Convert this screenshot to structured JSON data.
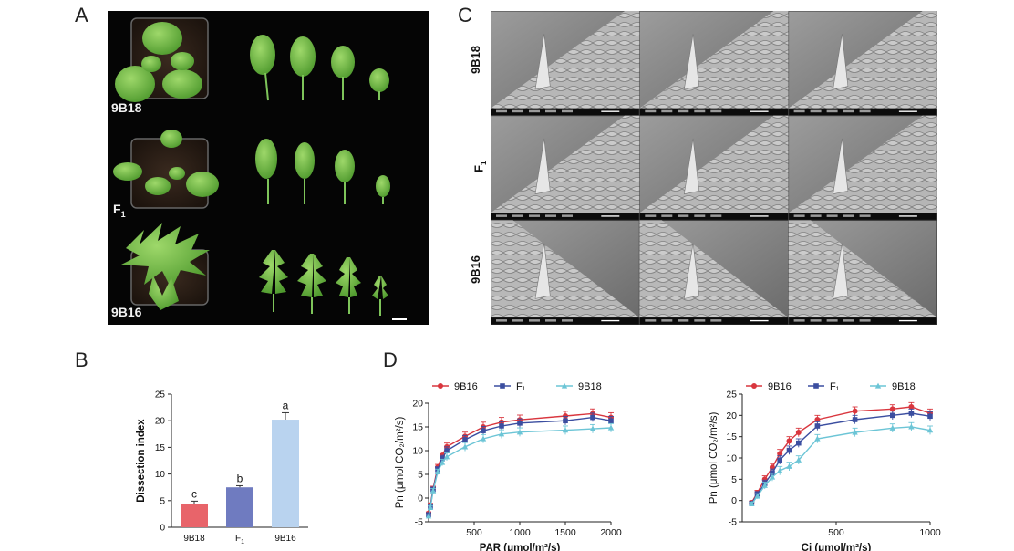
{
  "panels": {
    "a": "A",
    "b": "B",
    "c": "C",
    "d": "D"
  },
  "panelA": {
    "rows": [
      {
        "label": "9B18"
      },
      {
        "label_main": "F",
        "label_sub": "1"
      },
      {
        "label": "9B16"
      }
    ]
  },
  "panelC": {
    "rows": [
      {
        "label": "9B18"
      },
      {
        "label_main": "F",
        "label_sub": "1"
      },
      {
        "label": "9B16"
      }
    ]
  },
  "chart_data": [
    {
      "type": "bar",
      "ylabel": "Dissection index",
      "categories": [
        "9B18",
        "F1",
        "9B16"
      ],
      "category_labels": [
        {
          "main": "9B18"
        },
        {
          "main": "F",
          "sub": "1"
        },
        {
          "main": "9B16"
        }
      ],
      "values": [
        4.3,
        7.5,
        20.2
      ],
      "errors": [
        0.6,
        0.3,
        1.3
      ],
      "significance": [
        "c",
        "b",
        "a"
      ],
      "colors": [
        "#e8646a",
        "#6f7bc0",
        "#b9d3ef"
      ],
      "ylim": [
        0,
        25
      ],
      "yticks": [
        0,
        5,
        10,
        15,
        20,
        25
      ]
    },
    {
      "type": "line",
      "xlabel": "PAR (μmol/m²/s)",
      "ylabel": "Pn (μmol CO₂/m²/s)",
      "xlim": [
        0,
        2000
      ],
      "ylim": [
        -5,
        20
      ],
      "xticks": [
        500,
        1000,
        1500,
        2000
      ],
      "yticks": [
        -5,
        0,
        5,
        10,
        15,
        20
      ],
      "x": [
        0,
        20,
        50,
        100,
        150,
        200,
        400,
        600,
        800,
        1000,
        1500,
        1800,
        2000
      ],
      "series": [
        {
          "name": "9B16",
          "color": "#d9363e",
          "marker": "circle",
          "values": [
            -3.2,
            -1.5,
            2.0,
            6.5,
            9.0,
            10.8,
            13.0,
            15.0,
            16.0,
            16.5,
            17.3,
            17.8,
            17.0
          ],
          "errors": [
            0.3,
            0.4,
            0.5,
            0.6,
            0.7,
            0.8,
            0.9,
            1.0,
            1.0,
            1.0,
            1.0,
            1.0,
            1.0
          ]
        },
        {
          "name": "F₁",
          "color": "#3b4ea0",
          "marker": "square",
          "values": [
            -3.5,
            -1.8,
            1.8,
            6.0,
            8.3,
            10.0,
            12.3,
            14.2,
            15.2,
            15.8,
            16.3,
            17.0,
            16.3
          ],
          "errors": [
            0.3,
            0.4,
            0.5,
            0.6,
            0.7,
            0.8,
            0.9,
            0.9,
            0.9,
            0.9,
            0.9,
            0.9,
            0.9
          ]
        },
        {
          "name": "9B18",
          "color": "#6cc5d6",
          "marker": "triangle",
          "values": [
            -3.8,
            -2.0,
            1.5,
            5.5,
            7.5,
            8.7,
            10.8,
            12.5,
            13.5,
            13.9,
            14.3,
            14.6,
            14.8
          ],
          "errors": [
            0.3,
            0.4,
            0.5,
            0.6,
            0.7,
            0.8,
            0.9,
            0.9,
            0.9,
            0.9,
            0.9,
            0.9,
            0.9
          ]
        }
      ],
      "legend": "top"
    },
    {
      "type": "line",
      "xlabel": "Ci (μmol/m²/s)",
      "ylabel": "Pn (μmol CO₂/m²/s)",
      "xlim": [
        0,
        1000
      ],
      "ylim": [
        -5,
        25
      ],
      "xticks": [
        500,
        1000
      ],
      "yticks": [
        -5,
        0,
        5,
        10,
        15,
        20,
        25
      ],
      "x": [
        50,
        80,
        120,
        160,
        200,
        250,
        300,
        400,
        600,
        800,
        900,
        1000
      ],
      "series": [
        {
          "name": "9B16",
          "color": "#d9363e",
          "marker": "circle",
          "values": [
            -0.5,
            1.8,
            5.0,
            7.8,
            11.0,
            14.0,
            16.0,
            19.0,
            21.0,
            21.5,
            22.0,
            20.5
          ],
          "errors": [
            0.4,
            0.6,
            0.8,
            0.9,
            1.0,
            1.0,
            1.0,
            1.0,
            1.0,
            1.0,
            1.0,
            1.0
          ]
        },
        {
          "name": "F₁",
          "color": "#3b4ea0",
          "marker": "square",
          "values": [
            -0.7,
            1.5,
            4.0,
            6.5,
            9.5,
            11.8,
            13.5,
            17.5,
            19.0,
            20.0,
            20.5,
            19.8
          ],
          "errors": [
            0.4,
            0.6,
            0.8,
            0.9,
            1.0,
            1.0,
            1.0,
            1.0,
            1.0,
            1.0,
            1.0,
            1.0
          ]
        },
        {
          "name": "9B18",
          "color": "#6cc5d6",
          "marker": "triangle",
          "values": [
            -0.8,
            1.0,
            3.5,
            5.5,
            7.0,
            8.0,
            9.5,
            14.5,
            16.0,
            17.0,
            17.3,
            16.5
          ],
          "errors": [
            0.4,
            0.6,
            0.8,
            0.9,
            1.0,
            1.0,
            1.0,
            1.0,
            1.0,
            1.0,
            1.0,
            1.0
          ]
        }
      ],
      "legend": "top"
    }
  ]
}
